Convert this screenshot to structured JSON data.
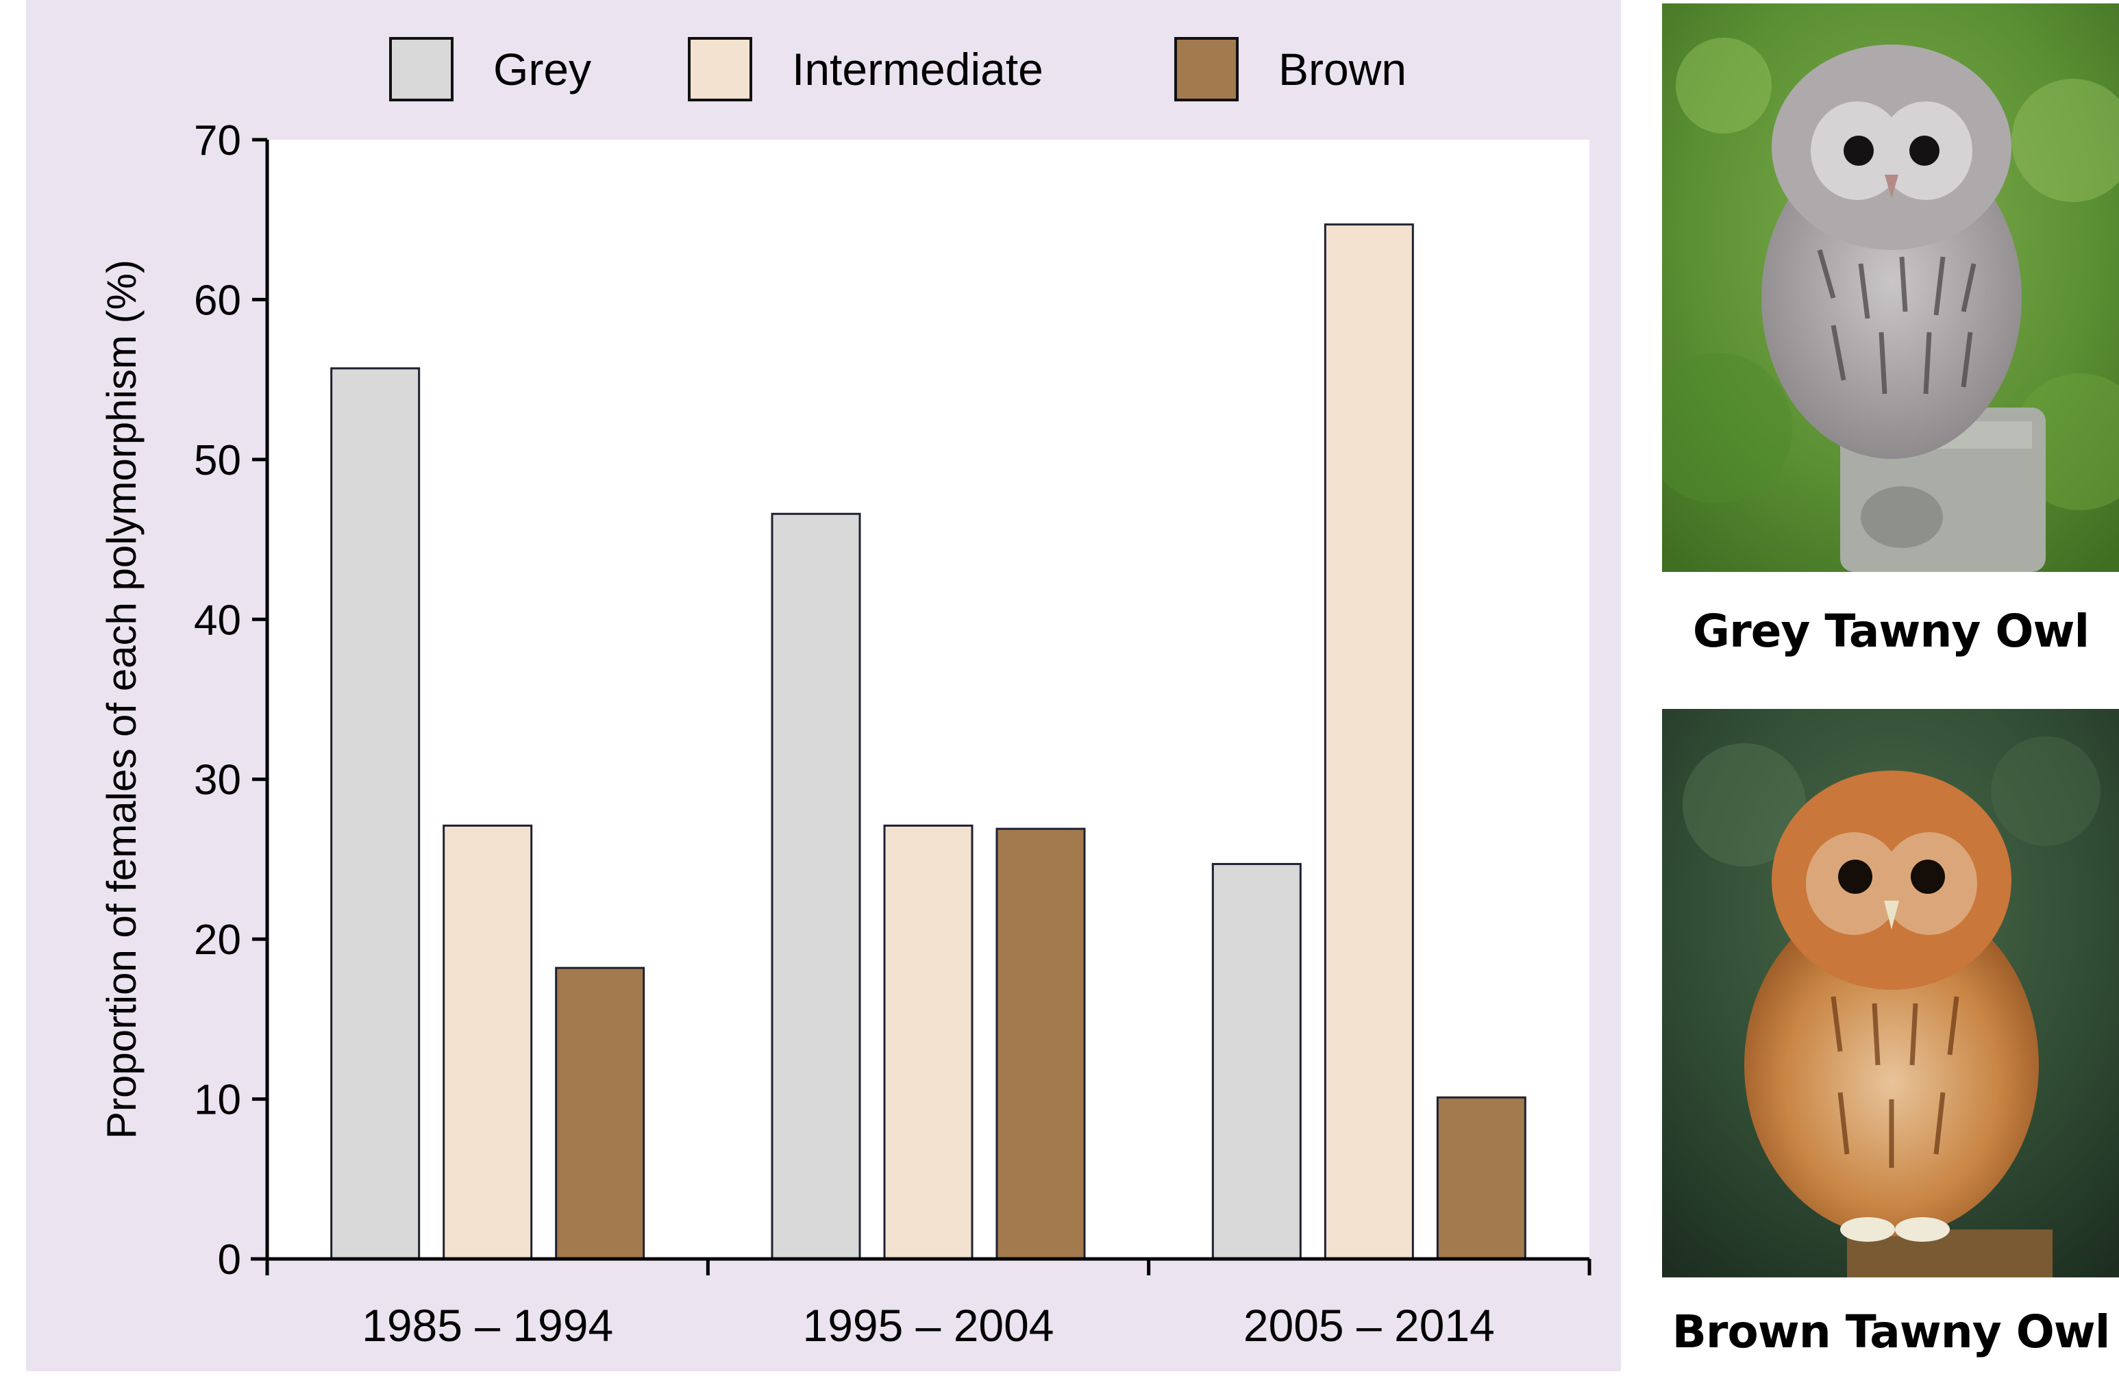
{
  "chart_data": {
    "type": "bar",
    "categories": [
      "1985 – 1994",
      "1995 – 2004",
      "2005 – 2014"
    ],
    "series": [
      {
        "name": "Grey",
        "color": "#d9d9d9",
        "values": [
          55.7,
          46.6,
          24.7
        ]
      },
      {
        "name": "Intermediate",
        "color": "#f2e2cf",
        "values": [
          27.1,
          27.1,
          64.7
        ]
      },
      {
        "name": "Brown",
        "color": "#a37a4d",
        "values": [
          18.2,
          26.9,
          10.1
        ]
      }
    ],
    "title": "",
    "xlabel": "",
    "ylabel": "Proportion of females of each polymorphism (%)",
    "ylim": [
      0,
      70
    ],
    "yticks": [
      0,
      10,
      20,
      30,
      40,
      50,
      60,
      70
    ],
    "grid": false,
    "legend": "top"
  },
  "photos": [
    {
      "caption": "Grey Tawny Owl",
      "plumage": "grey"
    },
    {
      "caption": "Brown Tawny Owl",
      "plumage": "brown"
    }
  ]
}
